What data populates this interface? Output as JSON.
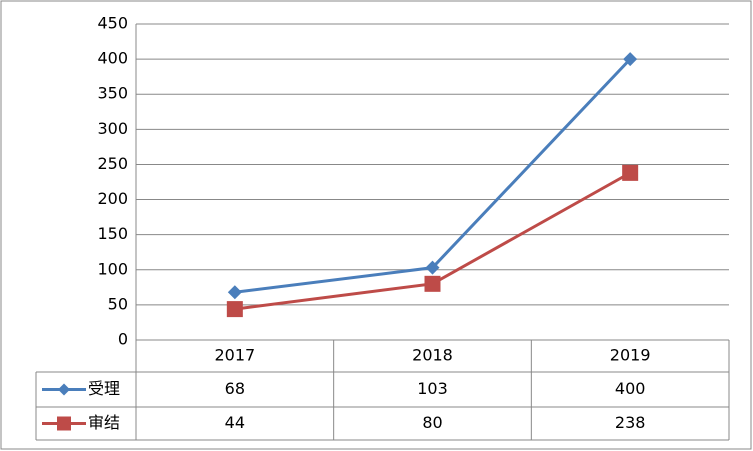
{
  "chart_data": {
    "type": "line",
    "categories": [
      "2017",
      "2018",
      "2019"
    ],
    "series": [
      {
        "name": "受理",
        "color": "#4a7ebb",
        "marker": "diamond",
        "values": [
          68,
          103,
          400
        ]
      },
      {
        "name": "审结",
        "color": "#be4b48",
        "marker": "square",
        "values": [
          44,
          80,
          238
        ]
      }
    ],
    "ylim": [
      0,
      450
    ],
    "yticks": [
      0,
      50,
      100,
      150,
      200,
      250,
      300,
      350,
      400,
      450
    ],
    "grid": true,
    "data_table": true
  }
}
